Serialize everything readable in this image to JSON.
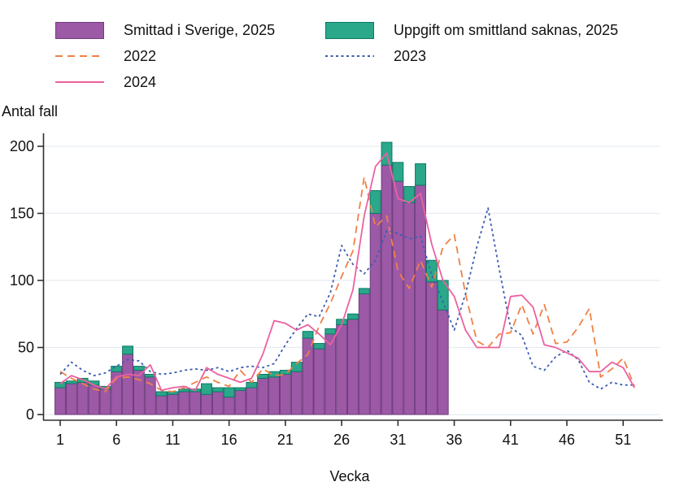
{
  "legend": {
    "items": [
      {
        "label": "Smittad i Sverige, 2025"
      },
      {
        "label": "Uppgift om smittland saknas, 2025"
      },
      {
        "label": "2022"
      },
      {
        "label": "2023"
      },
      {
        "label": "2024"
      }
    ]
  },
  "axes": {
    "y_title": "Antal fall",
    "x_title": "Vecka"
  },
  "colors": {
    "bar_sweden_fill": "#9C59A6",
    "bar_sweden_stroke": "#703C7E",
    "bar_unknown_fill": "#2BA78A",
    "bar_unknown_stroke": "#0C7A63",
    "line_2022": "#F08146",
    "line_2023": "#3D5EB0",
    "line_2024": "#EC619F",
    "gridline": "#E8ECF2",
    "axis": "#303030"
  },
  "chart_data": {
    "type": "bar",
    "subtype": "stacked-bars-with-overlaid-lines",
    "xlabel": "Vecka",
    "ylabel": "Antal fall",
    "x_ticks": [
      1,
      6,
      11,
      16,
      21,
      26,
      31,
      36,
      41,
      46,
      51
    ],
    "y_ticks": [
      0,
      50,
      100,
      150,
      200
    ],
    "xlim": [
      0,
      53
    ],
    "ylim": [
      0,
      215
    ],
    "grid": "horizontal",
    "legend_position": "top",
    "bar_x": [
      1,
      2,
      3,
      4,
      5,
      6,
      7,
      8,
      9,
      10,
      11,
      12,
      13,
      14,
      15,
      16,
      17,
      18,
      19,
      20,
      21,
      22,
      23,
      24,
      25,
      26,
      27,
      28,
      29,
      30,
      31,
      32,
      33,
      34,
      35
    ],
    "line_x": [
      1,
      2,
      3,
      4,
      5,
      6,
      7,
      8,
      9,
      10,
      11,
      12,
      13,
      14,
      15,
      16,
      17,
      18,
      19,
      20,
      21,
      22,
      23,
      24,
      25,
      26,
      27,
      28,
      29,
      30,
      31,
      32,
      33,
      34,
      35,
      36,
      37,
      38,
      39,
      40,
      41,
      42,
      43,
      44,
      45,
      46,
      47,
      48,
      49,
      50,
      51,
      52
    ],
    "series": [
      {
        "name": "Smittad i Sverige, 2025",
        "type": "bar-stack",
        "values": [
          20,
          23,
          24,
          22,
          19,
          32,
          45,
          33,
          28,
          14,
          15,
          17,
          17,
          15,
          17,
          13,
          18,
          20,
          27,
          28,
          30,
          32,
          57,
          49,
          60,
          67,
          71,
          90,
          150,
          186,
          174,
          158,
          171,
          99,
          78
        ]
      },
      {
        "name": "Uppgift om smittland saknas, 2025",
        "type": "bar-stack",
        "values": [
          4,
          2,
          3,
          3,
          2,
          4,
          6,
          3,
          2,
          3,
          2,
          2,
          2,
          8,
          3,
          7,
          2,
          4,
          3,
          4,
          3,
          7,
          5,
          4,
          4,
          4,
          4,
          4,
          17,
          17,
          14,
          12,
          16,
          16,
          22
        ]
      },
      {
        "name": "2022",
        "type": "line-dashed",
        "values": [
          32,
          27,
          23,
          19,
          17,
          27,
          28,
          26,
          23,
          18,
          17,
          20,
          24,
          28,
          24,
          21,
          33,
          24,
          34,
          29,
          30,
          38,
          45,
          66,
          83,
          103,
          122,
          177,
          140,
          148,
          107,
          94,
          115,
          95,
          125,
          134,
          90,
          55,
          50,
          60,
          61,
          82,
          60,
          82,
          53,
          54,
          65,
          79,
          28,
          34,
          42,
          21
        ]
      },
      {
        "name": "2023",
        "type": "line-dotted",
        "values": [
          30,
          39,
          33,
          29,
          31,
          36,
          41,
          40,
          32,
          30,
          31,
          33,
          34,
          33,
          35,
          32,
          35,
          36,
          35,
          38,
          52,
          64,
          75,
          73,
          91,
          126,
          112,
          105,
          115,
          137,
          135,
          131,
          133,
          104,
          84,
          63,
          90,
          125,
          154,
          108,
          65,
          59,
          36,
          33,
          43,
          48,
          41,
          24,
          19,
          24,
          22,
          22
        ]
      },
      {
        "name": "2024",
        "type": "line-solid",
        "values": [
          23,
          29,
          26,
          22,
          19,
          28,
          30,
          29,
          37,
          18,
          20,
          21,
          18,
          35,
          30,
          27,
          24,
          27,
          45,
          70,
          68,
          63,
          67,
          60,
          52,
          67,
          93,
          148,
          185,
          195,
          161,
          158,
          165,
          127,
          100,
          88,
          63,
          50,
          50,
          50,
          88,
          89,
          80,
          52,
          50,
          46,
          42,
          32,
          32,
          39,
          35,
          20
        ]
      }
    ]
  }
}
